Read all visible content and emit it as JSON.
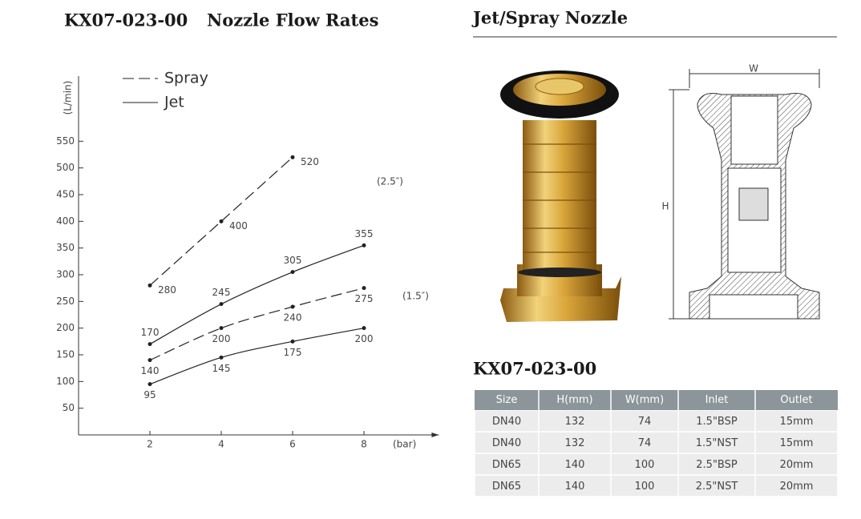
{
  "header": {
    "code": "KX07-023-00",
    "title": "Nozzle Flow Rates"
  },
  "chart_data": {
    "type": "line",
    "y_label": "(L/min)",
    "x_label": "(bar)",
    "x": [
      2,
      4,
      6,
      8
    ],
    "xlim": [
      0,
      10.1
    ],
    "xticks": [
      2,
      4,
      6,
      8
    ],
    "ylim": [
      0,
      672
    ],
    "yticks": [
      50,
      100,
      150,
      200,
      250,
      300,
      350,
      400,
      450,
      500,
      550
    ],
    "legend": [
      {
        "label": "Spray",
        "style": "dashed"
      },
      {
        "label": "Jet",
        "style": "solid"
      }
    ],
    "annotations": [
      "(2.5″)",
      "(1.5″)"
    ],
    "series": [
      {
        "style": "dashed",
        "color": "#222222",
        "values": [
          280,
          400,
          520,
          null
        ]
      },
      {
        "style": "solid",
        "color": "#222222",
        "values": [
          170,
          245,
          305,
          355
        ]
      },
      {
        "style": "dashed",
        "color": "#222222",
        "values": [
          140,
          200,
          240,
          275
        ]
      },
      {
        "style": "solid",
        "color": "#222222",
        "values": [
          95,
          145,
          175,
          200
        ]
      }
    ]
  },
  "product": {
    "title": "Jet/Spray Nozzle",
    "dimension_labels": [
      "W",
      "H"
    ]
  },
  "table": {
    "title": "KX07-023-00",
    "columns": [
      "Size",
      "H(mm)",
      "W(mm)",
      "Inlet",
      "Outlet"
    ],
    "rows": [
      [
        "DN40",
        "132",
        "74",
        "1.5\"BSP",
        "15mm"
      ],
      [
        "DN40",
        "132",
        "74",
        "1.5\"NST",
        "15mm"
      ],
      [
        "DN65",
        "140",
        "100",
        "2.5\"BSP",
        "20mm"
      ],
      [
        "DN65",
        "140",
        "100",
        "2.5\"NST",
        "20mm"
      ]
    ]
  }
}
